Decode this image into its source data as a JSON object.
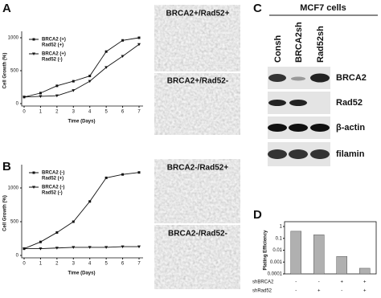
{
  "chart_data": [
    {
      "type": "line",
      "panel": "A",
      "x_label": "Time (Days)",
      "y_label": "Cell Growth (%)",
      "x": [
        0,
        1,
        2,
        3,
        4,
        5,
        6,
        7
      ],
      "xlim": [
        0,
        7
      ],
      "xticks": [
        0,
        1,
        2,
        3,
        4,
        5,
        6,
        7
      ],
      "ylim": [
        0,
        1000
      ],
      "yticks": [
        0,
        500,
        1000
      ],
      "series": [
        {
          "name": [
            "BRCA2 (+)",
            "Rad52 (+)"
          ],
          "color": "#111111",
          "marker": "square",
          "values": [
            100,
            160,
            270,
            340,
            420,
            790,
            960,
            1000
          ]
        },
        {
          "name": [
            "BRCA2 (+)",
            "Rad52 (-)"
          ],
          "color": "#111111",
          "marker": "triangle",
          "values": [
            100,
            110,
            120,
            200,
            340,
            550,
            720,
            900
          ]
        }
      ]
    },
    {
      "type": "line",
      "panel": "B",
      "x_label": "Time (Days)",
      "y_label": "Cell Growth (%)",
      "x": [
        0,
        1,
        2,
        3,
        4,
        5,
        6,
        7
      ],
      "xlim": [
        0,
        7
      ],
      "xticks": [
        0,
        1,
        2,
        3,
        4,
        5,
        6,
        7
      ],
      "ylim": [
        0,
        1250
      ],
      "yticks": [
        0,
        500,
        1000
      ],
      "series": [
        {
          "name": [
            "BRCA2 (-)",
            "Rad52 (+)"
          ],
          "color": "#111111",
          "marker": "square",
          "values": [
            100,
            200,
            340,
            500,
            800,
            1150,
            1200,
            1230
          ]
        },
        {
          "name": [
            "BRCA2 (-)",
            "Rad52 (-)"
          ],
          "color": "#111111",
          "marker": "triangle",
          "values": [
            100,
            100,
            110,
            120,
            120,
            120,
            130,
            130
          ]
        }
      ]
    },
    {
      "type": "bar",
      "panel": "D",
      "y_label": "Plating Efficiency",
      "log_scale": true,
      "categories": [
        null,
        null,
        null,
        null
      ],
      "values": [
        0.4,
        0.2,
        0.003,
        0.0003
      ],
      "color": "#b0b0b0",
      "ylim": [
        0.0001,
        1
      ],
      "yticks": [
        0.0001,
        0.001,
        0.01,
        0.1,
        1
      ],
      "conditions": [
        {
          "name": "shBRCA2",
          "values": [
            "-",
            "-",
            "+",
            "+"
          ]
        },
        {
          "name": "shRad52",
          "values": [
            "-",
            "+",
            "-",
            "+"
          ]
        }
      ]
    }
  ],
  "micrographs": {
    "A": [
      "BRCA2+/Rad52+",
      "BRCA2+/Rad52-"
    ],
    "B": [
      "BRCA2-/Rad52+",
      "BRCA2-/Rad52-"
    ]
  },
  "blot": {
    "panel": "C",
    "title": "MCF7 cells",
    "columns": [
      "Consh",
      "BRCA2sh",
      "Rad52sh"
    ],
    "rows": [
      "BRCA2",
      "Rad52",
      "β-actin",
      "filamin"
    ]
  }
}
